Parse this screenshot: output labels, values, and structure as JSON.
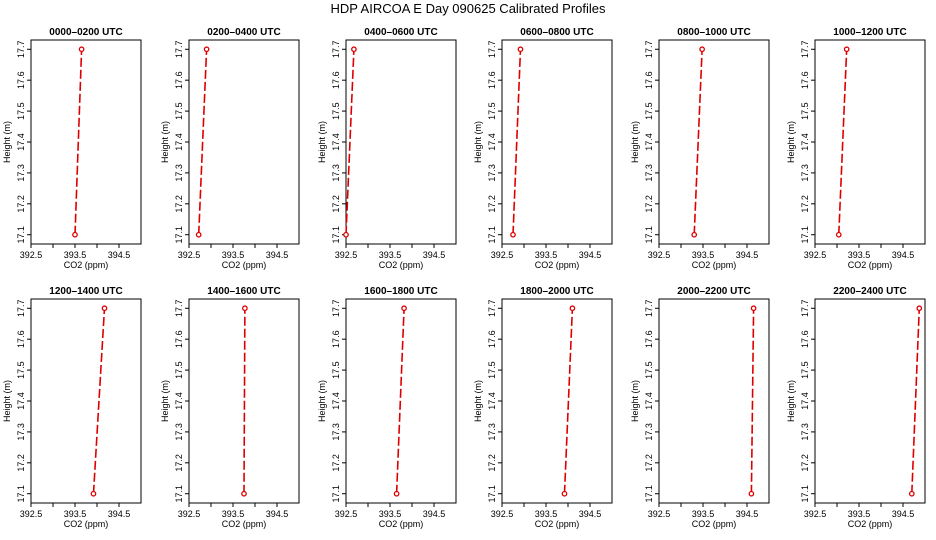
{
  "title": "HDP AIRCOA E  Day 090625  Calibrated Profiles",
  "colors": {
    "series": "#dd0000",
    "axes": "#000000"
  },
  "chart_data": [
    {
      "type": "line",
      "title": "0000–0200 UTC",
      "xlabel": "CO2 (ppm)",
      "ylabel": "Height (m)",
      "xlim": [
        392.5,
        395.0
      ],
      "ylim": [
        17.07,
        17.73
      ],
      "xticks": [
        "392.5",
        "393.5",
        "394.5"
      ],
      "yticks": [
        "17.1",
        "17.2",
        "17.3",
        "17.4",
        "17.5",
        "17.6",
        "17.7"
      ],
      "x": [
        393.5,
        393.65
      ],
      "y": [
        17.1,
        17.7
      ]
    },
    {
      "type": "line",
      "title": "0200–0400 UTC",
      "xlabel": "CO2 (ppm)",
      "ylabel": "Height (m)",
      "xlim": [
        392.5,
        395.0
      ],
      "ylim": [
        17.07,
        17.73
      ],
      "xticks": [
        "392.5",
        "393.5",
        "394.5"
      ],
      "yticks": [
        "17.1",
        "17.2",
        "17.3",
        "17.4",
        "17.5",
        "17.6",
        "17.7"
      ],
      "x": [
        392.72,
        392.9
      ],
      "y": [
        17.1,
        17.7
      ]
    },
    {
      "type": "line",
      "title": "0400–0600 UTC",
      "xlabel": "CO2 (ppm)",
      "ylabel": "Height (m)",
      "xlim": [
        392.5,
        395.0
      ],
      "ylim": [
        17.07,
        17.73
      ],
      "xticks": [
        "392.5",
        "393.5",
        "394.5"
      ],
      "yticks": [
        "17.1",
        "17.2",
        "17.3",
        "17.4",
        "17.5",
        "17.6",
        "17.7"
      ],
      "x": [
        392.5,
        392.68
      ],
      "y": [
        17.1,
        17.7
      ]
    },
    {
      "type": "line",
      "title": "0600–0800 UTC",
      "xlabel": "CO2 (ppm)",
      "ylabel": "Height (m)",
      "xlim": [
        392.5,
        395.0
      ],
      "ylim": [
        17.07,
        17.73
      ],
      "xticks": [
        "392.5",
        "393.5",
        "394.5"
      ],
      "yticks": [
        "17.1",
        "17.2",
        "17.3",
        "17.4",
        "17.5",
        "17.6",
        "17.7"
      ],
      "x": [
        392.75,
        392.92
      ],
      "y": [
        17.1,
        17.7
      ]
    },
    {
      "type": "line",
      "title": "0800–1000 UTC",
      "xlabel": "CO2 (ppm)",
      "ylabel": "Height (m)",
      "xlim": [
        392.5,
        395.0
      ],
      "ylim": [
        17.07,
        17.73
      ],
      "xticks": [
        "392.5",
        "393.5",
        "394.5"
      ],
      "yticks": [
        "17.1",
        "17.2",
        "17.3",
        "17.4",
        "17.5",
        "17.6",
        "17.7"
      ],
      "x": [
        393.3,
        393.48
      ],
      "y": [
        17.1,
        17.7
      ]
    },
    {
      "type": "line",
      "title": "1000–1200 UTC",
      "xlabel": "CO2 (ppm)",
      "ylabel": "Height (m)",
      "xlim": [
        392.5,
        395.0
      ],
      "ylim": [
        17.07,
        17.73
      ],
      "xticks": [
        "392.5",
        "393.5",
        "394.5"
      ],
      "yticks": [
        "17.1",
        "17.2",
        "17.3",
        "17.4",
        "17.5",
        "17.6",
        "17.7"
      ],
      "x": [
        393.04,
        393.22
      ],
      "y": [
        17.1,
        17.7
      ]
    },
    {
      "type": "line",
      "title": "1200–1400 UTC",
      "xlabel": "CO2 (ppm)",
      "ylabel": "Height (m)",
      "xlim": [
        392.5,
        395.0
      ],
      "ylim": [
        17.07,
        17.73
      ],
      "xticks": [
        "392.5",
        "393.5",
        "394.5"
      ],
      "yticks": [
        "17.1",
        "17.2",
        "17.3",
        "17.4",
        "17.5",
        "17.6",
        "17.7"
      ],
      "x": [
        393.92,
        394.17
      ],
      "y": [
        17.1,
        17.7
      ]
    },
    {
      "type": "line",
      "title": "1400–1600 UTC",
      "xlabel": "CO2 (ppm)",
      "ylabel": "Height (m)",
      "xlim": [
        392.5,
        395.0
      ],
      "ylim": [
        17.07,
        17.73
      ],
      "xticks": [
        "392.5",
        "393.5",
        "394.5"
      ],
      "yticks": [
        "17.1",
        "17.2",
        "17.3",
        "17.4",
        "17.5",
        "17.6",
        "17.7"
      ],
      "x": [
        393.75,
        393.77
      ],
      "y": [
        17.1,
        17.7
      ]
    },
    {
      "type": "line",
      "title": "1600–1800 UTC",
      "xlabel": "CO2 (ppm)",
      "ylabel": "Height (m)",
      "xlim": [
        392.5,
        395.0
      ],
      "ylim": [
        17.07,
        17.73
      ],
      "xticks": [
        "392.5",
        "393.5",
        "394.5"
      ],
      "yticks": [
        "17.1",
        "17.2",
        "17.3",
        "17.4",
        "17.5",
        "17.6",
        "17.7"
      ],
      "x": [
        393.65,
        393.82
      ],
      "y": [
        17.1,
        17.7
      ]
    },
    {
      "type": "line",
      "title": "1800–2000 UTC",
      "xlabel": "CO2 (ppm)",
      "ylabel": "Height (m)",
      "xlim": [
        392.5,
        395.0
      ],
      "ylim": [
        17.07,
        17.73
      ],
      "xticks": [
        "392.5",
        "393.5",
        "394.5"
      ],
      "yticks": [
        "17.1",
        "17.2",
        "17.3",
        "17.4",
        "17.5",
        "17.6",
        "17.7"
      ],
      "x": [
        393.92,
        394.1
      ],
      "y": [
        17.1,
        17.7
      ]
    },
    {
      "type": "line",
      "title": "2000–2200 UTC",
      "xlabel": "CO2 (ppm)",
      "ylabel": "Height (m)",
      "xlim": [
        392.5,
        395.0
      ],
      "ylim": [
        17.07,
        17.73
      ],
      "xticks": [
        "392.5",
        "393.5",
        "394.5"
      ],
      "yticks": [
        "17.1",
        "17.2",
        "17.3",
        "17.4",
        "17.5",
        "17.6",
        "17.7"
      ],
      "x": [
        394.6,
        394.65
      ],
      "y": [
        17.1,
        17.7
      ]
    },
    {
      "type": "line",
      "title": "2200–2400 UTC",
      "xlabel": "CO2 (ppm)",
      "ylabel": "Height (m)",
      "xlim": [
        392.5,
        395.0
      ],
      "ylim": [
        17.07,
        17.73
      ],
      "xticks": [
        "392.5",
        "393.5",
        "394.5"
      ],
      "yticks": [
        "17.1",
        "17.2",
        "17.3",
        "17.4",
        "17.5",
        "17.6",
        "17.7"
      ],
      "x": [
        394.7,
        394.87
      ],
      "y": [
        17.1,
        17.7
      ]
    }
  ]
}
